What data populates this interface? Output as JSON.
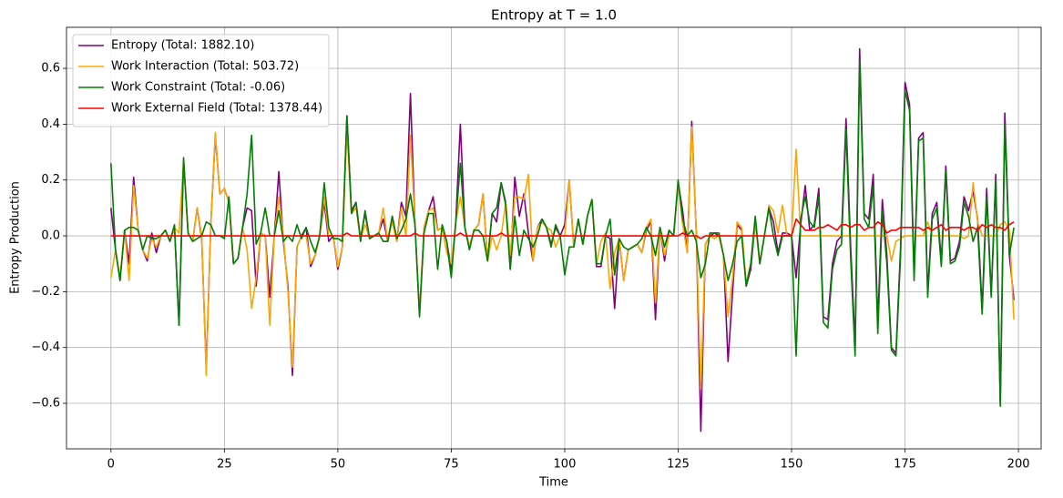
{
  "chart_data": {
    "type": "line",
    "title": "Entropy at T = 1.0",
    "x_label": "Time",
    "y_label": "Entropy Production",
    "grid": true,
    "legend": "upper left",
    "xlim": [
      -9.8,
      205
    ],
    "ylim": [
      -0.763,
      0.747
    ],
    "xticks": [
      0,
      25,
      50,
      75,
      100,
      125,
      150,
      175,
      200
    ],
    "yticks": [
      {
        "value": -0.6,
        "label": "−0.6"
      },
      {
        "value": -0.4,
        "label": "−0.4"
      },
      {
        "value": -0.2,
        "label": "−0.2"
      },
      {
        "value": 0,
        "label": "0.0"
      },
      0.2,
      0.4,
      0.6
    ],
    "x": [
      0,
      1,
      2,
      3,
      4,
      5,
      6,
      7,
      8,
      9,
      10,
      11,
      12,
      13,
      14,
      15,
      16,
      17,
      18,
      19,
      20,
      21,
      22,
      23,
      24,
      25,
      26,
      27,
      28,
      29,
      30,
      31,
      32,
      33,
      34,
      35,
      36,
      37,
      38,
      39,
      40,
      41,
      42,
      43,
      44,
      45,
      46,
      47,
      48,
      49,
      50,
      51,
      52,
      53,
      54,
      55,
      56,
      57,
      58,
      59,
      60,
      61,
      62,
      63,
      64,
      65,
      66,
      67,
      68,
      69,
      70,
      71,
      72,
      73,
      74,
      75,
      76,
      77,
      78,
      79,
      80,
      81,
      82,
      83,
      84,
      85,
      86,
      87,
      88,
      89,
      90,
      91,
      92,
      93,
      94,
      95,
      96,
      97,
      98,
      99,
      100,
      101,
      102,
      103,
      104,
      105,
      106,
      107,
      108,
      109,
      110,
      111,
      112,
      113,
      114,
      115,
      116,
      117,
      118,
      119,
      120,
      121,
      122,
      123,
      124,
      125,
      126,
      127,
      128,
      129,
      130,
      131,
      132,
      133,
      134,
      135,
      136,
      137,
      138,
      139,
      140,
      141,
      142,
      143,
      144,
      145,
      146,
      147,
      148,
      149,
      150,
      151,
      152,
      153,
      154,
      155,
      156,
      157,
      158,
      159,
      160,
      161,
      162,
      163,
      164,
      165,
      166,
      167,
      168,
      169,
      170,
      171,
      172,
      173,
      174,
      175,
      176,
      177,
      178,
      179,
      180,
      181,
      182,
      183,
      184,
      185,
      186,
      187,
      188,
      189,
      190,
      191,
      192,
      193,
      194,
      195,
      196,
      197,
      198,
      199
    ],
    "series": [
      {
        "name": "Entropy (Total: 1882.10)",
        "color": "#800080",
        "values": [
          0.1,
          -0.05,
          -0.16,
          0.02,
          -0.1,
          0.21,
          0.02,
          -0.05,
          -0.09,
          0.01,
          -0.06,
          0.0,
          0.02,
          -0.02,
          0.03,
          -0.32,
          0.27,
          0.01,
          -0.02,
          0.1,
          -0.01,
          -0.48,
          0.04,
          0.36,
          0.15,
          0.17,
          0.12,
          -0.1,
          -0.08,
          0.03,
          0.1,
          0.09,
          -0.18,
          0.01,
          0.0,
          -0.22,
          0.0,
          0.23,
          -0.02,
          -0.18,
          -0.5,
          -0.04,
          0.0,
          0.03,
          -0.11,
          -0.07,
          0.0,
          0.12,
          -0.02,
          0.0,
          -0.12,
          -0.04,
          0.43,
          0.09,
          0.12,
          -0.01,
          0.08,
          -0.01,
          0.0,
          0.01,
          0.06,
          -0.02,
          0.07,
          -0.02,
          0.12,
          0.07,
          0.51,
          0.04,
          -0.28,
          0.03,
          0.09,
          0.14,
          0.02,
          0.03,
          -0.02,
          -0.12,
          0.05,
          0.4,
          0.03,
          -0.04,
          0.02,
          0.04,
          0.15,
          -0.09,
          0.08,
          0.05,
          0.19,
          0.12,
          -0.12,
          0.21,
          0.07,
          0.15,
          0.01,
          -0.09,
          0.03,
          0.06,
          0.03,
          -0.03,
          0.03,
          0.0,
          0.04,
          0.2,
          -0.04,
          0.06,
          -0.03,
          0.07,
          0.13,
          -0.11,
          -0.11,
          0.0,
          -0.01,
          -0.26,
          -0.01,
          -0.16,
          -0.05,
          -0.04,
          -0.03,
          -0.06,
          0.02,
          0.05,
          -0.3,
          0.03,
          -0.09,
          0.02,
          0.0,
          0.19,
          0.09,
          -0.06,
          0.41,
          0.01,
          -0.7,
          -0.03,
          0.0,
          0.01,
          0.0,
          -0.07,
          -0.45,
          -0.2,
          0.04,
          0.02,
          -0.18,
          -0.12,
          0.05,
          -0.1,
          0.0,
          0.1,
          0.05,
          -0.06,
          0.01,
          0.01,
          0.0,
          -0.15,
          0.04,
          0.18,
          0.02,
          0.04,
          0.17,
          -0.29,
          -0.3,
          -0.1,
          -0.02,
          0.0,
          0.42,
          -0.03,
          -0.39,
          0.67,
          0.08,
          0.06,
          0.22,
          -0.31,
          0.13,
          -0.07,
          -0.4,
          -0.42,
          -0.05,
          0.55,
          0.47,
          -0.13,
          0.35,
          0.37,
          -0.2,
          0.08,
          0.12,
          -0.09,
          0.25,
          -0.09,
          -0.08,
          -0.02,
          0.14,
          0.09,
          0.16,
          0.06,
          -0.26,
          0.17,
          -0.21,
          0.22,
          -0.6,
          0.44,
          -0.07,
          -0.23
        ]
      },
      {
        "name": "Work Interaction (Total: 503.72)",
        "color": "#ffa500",
        "values": [
          -0.15,
          -0.05,
          -0.15,
          0.02,
          -0.16,
          0.18,
          0.02,
          -0.05,
          -0.08,
          -0.01,
          -0.04,
          0.0,
          0.02,
          -0.02,
          0.03,
          0.01,
          0.27,
          0.01,
          -0.02,
          0.1,
          0.0,
          -0.5,
          0.04,
          0.37,
          0.15,
          0.17,
          0.12,
          -0.1,
          -0.08,
          0.03,
          -0.05,
          -0.26,
          -0.15,
          0.01,
          0.0,
          -0.32,
          0.0,
          0.14,
          0.0,
          -0.2,
          -0.47,
          -0.04,
          0.0,
          0.0,
          -0.1,
          -0.07,
          0.0,
          0.14,
          0.0,
          0.0,
          -0.11,
          -0.04,
          0.38,
          0.08,
          0.1,
          -0.01,
          0.04,
          -0.01,
          0.0,
          0.01,
          0.1,
          -0.02,
          0.05,
          -0.02,
          0.1,
          0.0,
          0.36,
          0.04,
          -0.28,
          0.03,
          0.09,
          0.1,
          0.02,
          0.03,
          -0.06,
          -0.1,
          0.05,
          0.14,
          0.03,
          -0.04,
          0.02,
          0.04,
          0.15,
          -0.09,
          0.0,
          -0.05,
          0.0,
          0.12,
          -0.07,
          0.14,
          0.14,
          0.13,
          0.22,
          -0.09,
          0.03,
          0.05,
          0.03,
          0.02,
          -0.04,
          0.0,
          0.0,
          0.2,
          -0.04,
          0.06,
          -0.03,
          0.07,
          0.13,
          -0.1,
          -0.02,
          0.01,
          -0.19,
          -0.06,
          -0.01,
          -0.16,
          -0.05,
          -0.04,
          -0.03,
          -0.06,
          0.03,
          0.06,
          -0.24,
          0.03,
          -0.07,
          0.0,
          0.0,
          0.19,
          0.04,
          -0.06,
          0.39,
          0.01,
          -0.55,
          -0.03,
          0.0,
          -0.01,
          0.0,
          -0.07,
          -0.29,
          -0.15,
          0.05,
          0.03,
          -0.17,
          -0.1,
          0.05,
          -0.1,
          0.0,
          0.11,
          0.09,
          0.01,
          0.11,
          0.0,
          0.0,
          0.31,
          0.0,
          0.0,
          0.0,
          0.0,
          0.0,
          0.0,
          0.0,
          0.0,
          0.0,
          0.0,
          0.0,
          0.0,
          0.0,
          0.0,
          0.0,
          0.0,
          0.0,
          0.0,
          0.0,
          0.0,
          -0.09,
          -0.02,
          -0.01,
          0.0,
          0.0,
          0.0,
          0.0,
          0.0,
          0.05,
          0.0,
          0.0,
          0.0,
          0.0,
          0.0,
          0.0,
          0.0,
          -0.01,
          0.0,
          0.19,
          0.05,
          0.0,
          0.0,
          0.0,
          0.0,
          0.04,
          0.05,
          0.02,
          -0.3
        ]
      },
      {
        "name": "Work Constraint (Total: -0.06)",
        "color": "#008000",
        "values": [
          0.26,
          -0.05,
          -0.16,
          0.02,
          0.03,
          0.03,
          0.02,
          -0.05,
          0.0,
          -0.01,
          -0.01,
          0.0,
          0.02,
          -0.02,
          0.04,
          -0.32,
          0.28,
          0.01,
          -0.02,
          -0.01,
          0.0,
          0.05,
          0.04,
          0.0,
          0.0,
          -0.01,
          0.14,
          -0.1,
          -0.08,
          0.03,
          0.15,
          0.36,
          -0.03,
          0.01,
          0.1,
          0.0,
          0.0,
          0.09,
          -0.02,
          0.0,
          -0.02,
          0.04,
          -0.01,
          0.03,
          -0.02,
          -0.06,
          0.0,
          0.19,
          0.03,
          -0.01,
          -0.01,
          -0.02,
          0.43,
          0.08,
          0.12,
          -0.02,
          0.09,
          -0.01,
          0.0,
          0.01,
          -0.02,
          -0.02,
          0.07,
          -0.01,
          0.02,
          0.06,
          0.15,
          0.04,
          -0.29,
          0.01,
          0.08,
          0.08,
          -0.12,
          0.04,
          -0.02,
          -0.15,
          0.05,
          0.26,
          0.03,
          -0.05,
          0.02,
          0.02,
          0.0,
          -0.09,
          0.08,
          0.1,
          0.19,
          0.11,
          -0.12,
          0.07,
          -0.07,
          0.02,
          -0.01,
          -0.04,
          0.0,
          0.06,
          0.03,
          -0.04,
          0.04,
          0.0,
          -0.14,
          -0.04,
          -0.04,
          0.06,
          -0.03,
          0.07,
          0.13,
          -0.1,
          -0.1,
          0.0,
          0.06,
          -0.14,
          -0.01,
          -0.04,
          -0.05,
          -0.04,
          -0.03,
          -0.01,
          0.03,
          0.0,
          -0.07,
          0.03,
          -0.04,
          0.02,
          0.0,
          0.2,
          0.06,
          0.0,
          0.02,
          -0.02,
          -0.15,
          -0.1,
          0.01,
          0.01,
          0.01,
          -0.07,
          -0.16,
          -0.1,
          -0.02,
          0.0,
          -0.18,
          -0.1,
          0.07,
          -0.1,
          0.0,
          0.1,
          0.0,
          -0.07,
          0.0,
          0.0,
          0.0,
          -0.43,
          0.06,
          0.14,
          0.05,
          0.03,
          0.14,
          -0.31,
          -0.33,
          -0.12,
          -0.05,
          -0.03,
          0.38,
          -0.07,
          -0.43,
          0.63,
          0.06,
          0.03,
          0.18,
          -0.35,
          0.09,
          -0.1,
          -0.41,
          -0.43,
          -0.08,
          0.52,
          0.45,
          -0.16,
          0.34,
          0.35,
          -0.22,
          0.06,
          0.1,
          -0.11,
          0.23,
          -0.1,
          -0.09,
          -0.04,
          0.12,
          0.07,
          -0.02,
          0.03,
          -0.28,
          0.14,
          -0.22,
          0.2,
          -0.61,
          0.4,
          -0.07,
          0.03
        ]
      },
      {
        "name": "Work External Field (Total: 1378.44)",
        "color": "#ff0000",
        "values": [
          0.0,
          0.0,
          0.0,
          0.0,
          0.0,
          0.0,
          0.0,
          0.0,
          0.0,
          0.0,
          0.0,
          0.0,
          0.0,
          0.0,
          0.0,
          0.0,
          0.0,
          0.0,
          0.0,
          0.0,
          0.0,
          0.0,
          0.0,
          0.0,
          0.0,
          0.0,
          0.0,
          0.0,
          0.0,
          0.0,
          0.0,
          0.0,
          0.0,
          0.0,
          0.0,
          0.0,
          0.0,
          0.0,
          0.0,
          0.0,
          0.0,
          0.0,
          0.0,
          0.0,
          0.0,
          0.0,
          0.0,
          0.0,
          0.0,
          0.0,
          0.0,
          0.0,
          0.01,
          0.0,
          0.0,
          0.0,
          0.0,
          0.0,
          0.0,
          0.0,
          0.0,
          0.0,
          0.0,
          0.0,
          0.0,
          0.0,
          0.0,
          0.01,
          0.0,
          0.0,
          0.0,
          0.0,
          0.0,
          0.0,
          0.0,
          0.0,
          0.0,
          0.01,
          0.0,
          0.0,
          0.0,
          0.0,
          0.0,
          0.0,
          0.0,
          0.0,
          0.01,
          0.0,
          0.0,
          0.0,
          0.0,
          0.0,
          0.0,
          0.0,
          0.0,
          0.0,
          0.0,
          0.0,
          0.0,
          0.0,
          0.0,
          0.0,
          0.0,
          0.0,
          0.0,
          0.0,
          0.0,
          0.0,
          0.0,
          0.0,
          0.0,
          0.0,
          0.0,
          0.0,
          0.0,
          0.0,
          0.0,
          0.0,
          0.0,
          0.0,
          0.0,
          0.0,
          0.0,
          0.0,
          0.0,
          0.0,
          0.01,
          0.0,
          0.0,
          0.0,
          -0.01,
          0.0,
          0.0,
          0.0,
          0.0,
          0.0,
          0.0,
          0.0,
          0.0,
          0.0,
          0.0,
          0.0,
          0.0,
          0.0,
          0.0,
          0.0,
          0.0,
          0.0,
          0.0,
          0.0,
          0.0,
          0.06,
          0.04,
          0.02,
          0.02,
          0.02,
          0.03,
          0.03,
          0.04,
          0.03,
          0.02,
          0.04,
          0.04,
          0.03,
          0.04,
          0.04,
          0.02,
          0.03,
          0.03,
          0.05,
          0.04,
          0.01,
          0.02,
          0.02,
          0.03,
          0.03,
          0.03,
          0.03,
          0.03,
          0.02,
          0.03,
          0.02,
          0.03,
          0.04,
          0.02,
          0.03,
          0.03,
          0.03,
          0.02,
          0.03,
          0.03,
          0.02,
          0.04,
          0.03,
          0.04,
          0.03,
          0.03,
          0.02,
          0.04,
          0.05
        ]
      }
    ]
  }
}
